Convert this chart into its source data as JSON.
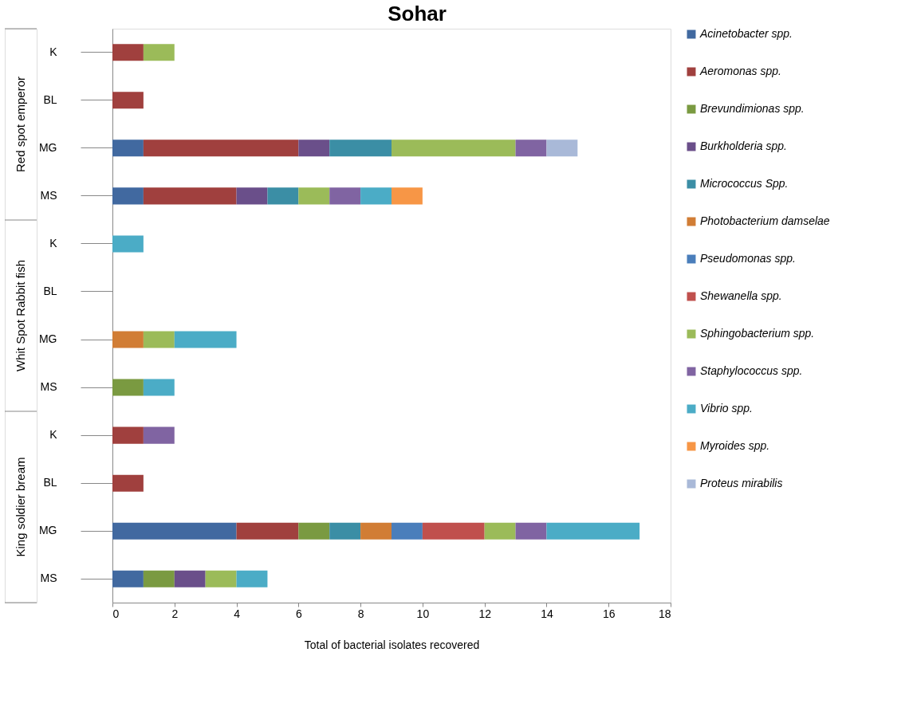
{
  "chart_data": {
    "type": "bar",
    "orientation": "horizontal",
    "stacked": true,
    "title": "Sohar",
    "xlabel": "Total of bacterial isolates recovered",
    "categories": [
      "K",
      "BL",
      "MG",
      "MS",
      "K",
      "BL",
      "MG",
      "MS",
      "K",
      "BL",
      "MG",
      "MS"
    ],
    "annotations": [
      "Red spot emperor",
      "Whit Spot  Rabbit fish",
      "King soldier bream"
    ],
    "xlim": [
      0,
      18
    ],
    "xticks": [
      0,
      2,
      4,
      6,
      8,
      10,
      12,
      14,
      16,
      18
    ],
    "grid": false,
    "legend": "right",
    "series": [
      {
        "name": "Acinetobacter  spp.",
        "color": "#4169a0",
        "values": [
          null,
          null,
          1,
          1,
          null,
          null,
          null,
          null,
          null,
          null,
          4,
          1
        ]
      },
      {
        "name": "Aeromonas spp.",
        "color": "#a0403e",
        "values": [
          1,
          1,
          5,
          3,
          null,
          null,
          null,
          null,
          1,
          1,
          2,
          null
        ]
      },
      {
        "name": "Brevundimionas  spp.",
        "color": "#7a9a41",
        "values": [
          null,
          null,
          null,
          null,
          null,
          null,
          null,
          1,
          null,
          null,
          1,
          1
        ]
      },
      {
        "name": "Burkholderia spp.",
        "color": "#6a4f8a",
        "values": [
          null,
          null,
          1,
          1,
          null,
          null,
          null,
          null,
          null,
          null,
          null,
          1
        ]
      },
      {
        "name": "Micrococcus Spp.",
        "color": "#3b8ea5",
        "values": [
          null,
          null,
          2,
          1,
          null,
          null,
          null,
          null,
          null,
          null,
          1,
          null
        ]
      },
      {
        "name": "Photobacterium damselae",
        "color": "#d17d35",
        "values": [
          null,
          null,
          null,
          null,
          null,
          null,
          1,
          null,
          null,
          null,
          1,
          null
        ]
      },
      {
        "name": "Pseudomonas spp.",
        "color": "#4a7ebb",
        "values": [
          null,
          null,
          null,
          null,
          null,
          null,
          null,
          null,
          null,
          null,
          1,
          null
        ]
      },
      {
        "name": "Shewanella  spp.",
        "color": "#c0504d",
        "values": [
          null,
          null,
          null,
          null,
          null,
          null,
          null,
          null,
          null,
          null,
          2,
          null
        ]
      },
      {
        "name": "Sphingobacterium  spp.",
        "color": "#9bbb59",
        "values": [
          1,
          null,
          4,
          1,
          null,
          null,
          1,
          null,
          null,
          null,
          1,
          1
        ]
      },
      {
        "name": "Staphylococcus  spp.",
        "color": "#8064a2",
        "values": [
          null,
          null,
          1,
          1,
          null,
          null,
          null,
          null,
          1,
          null,
          1,
          null
        ]
      },
      {
        "name": "Vibrio spp.",
        "color": "#4bacc6",
        "values": [
          null,
          null,
          null,
          1,
          1,
          null,
          2,
          1,
          null,
          null,
          3,
          1
        ]
      },
      {
        "name": "Myroides spp.",
        "color": "#f79646",
        "values": [
          null,
          null,
          null,
          1,
          null,
          null,
          null,
          null,
          null,
          null,
          null,
          null
        ]
      },
      {
        "name": "Proteus mirabilis",
        "color": "#a9b9d8",
        "values": [
          null,
          null,
          1,
          null,
          null,
          null,
          null,
          null,
          null,
          null,
          null,
          null
        ]
      }
    ]
  }
}
